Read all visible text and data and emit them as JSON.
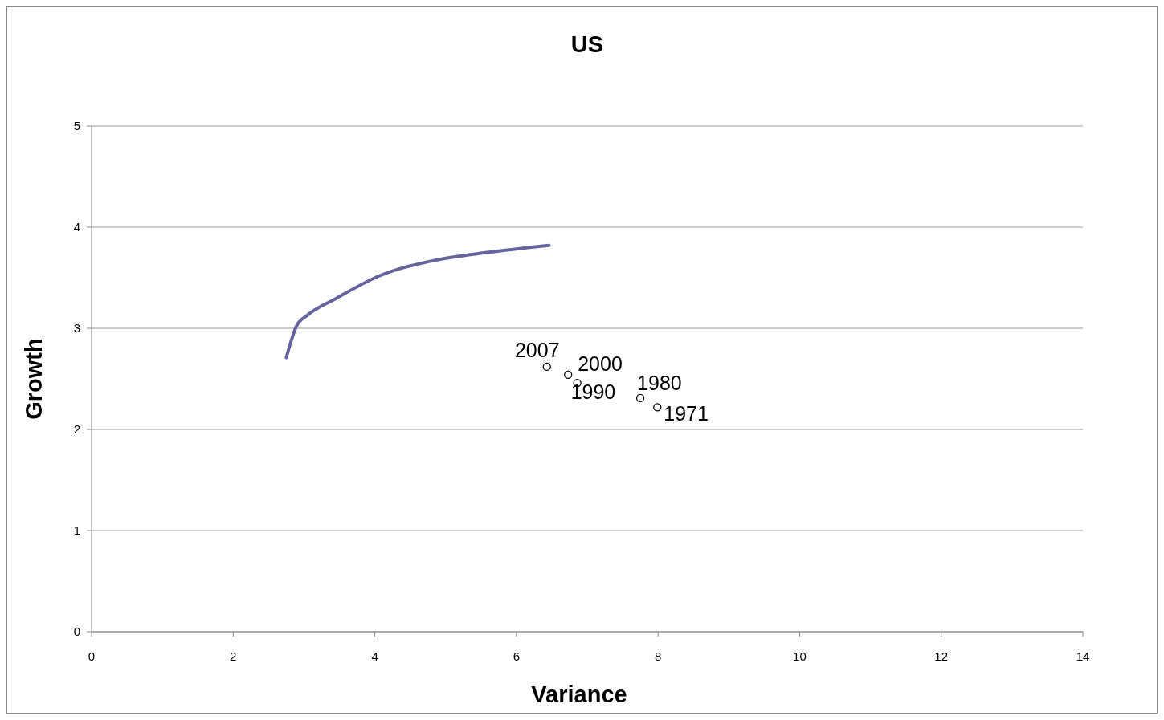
{
  "chart_data": {
    "type": "scatter",
    "title": "US",
    "xlabel": "Variance",
    "ylabel": "Growth",
    "xlim": [
      0,
      14
    ],
    "xticks": [
      0,
      2,
      4,
      6,
      8,
      10,
      12,
      14
    ],
    "ylim": [
      0,
      5
    ],
    "yticks": [
      0,
      1,
      2,
      3,
      4,
      5
    ],
    "grid": "y",
    "series": [
      {
        "type": "line",
        "color": "#64649e",
        "x": [
          2.75,
          2.9,
          3.05,
          3.44,
          4.07,
          4.83,
          5.59,
          6.46
        ],
        "values": [
          2.71,
          3.03,
          3.13,
          3.29,
          3.52,
          3.67,
          3.75,
          3.82
        ],
        "marker": "none"
      },
      {
        "color": "#000000",
        "x": [
          6.43,
          6.73,
          6.86,
          7.75,
          7.99
        ],
        "values": [
          2.62,
          2.54,
          2.46,
          2.31,
          2.22
        ],
        "marker": "circle"
      }
    ],
    "annotations": [
      {
        "text": "2007",
        "x": 6.43,
        "y": 2.62
      },
      {
        "text": "2000",
        "x": 6.73,
        "y": 2.54
      },
      {
        "text": "1990",
        "x": 6.86,
        "y": 2.46
      },
      {
        "text": "1980",
        "x": 7.75,
        "y": 2.31
      },
      {
        "text": "1971",
        "x": 7.99,
        "y": 2.22
      }
    ]
  }
}
